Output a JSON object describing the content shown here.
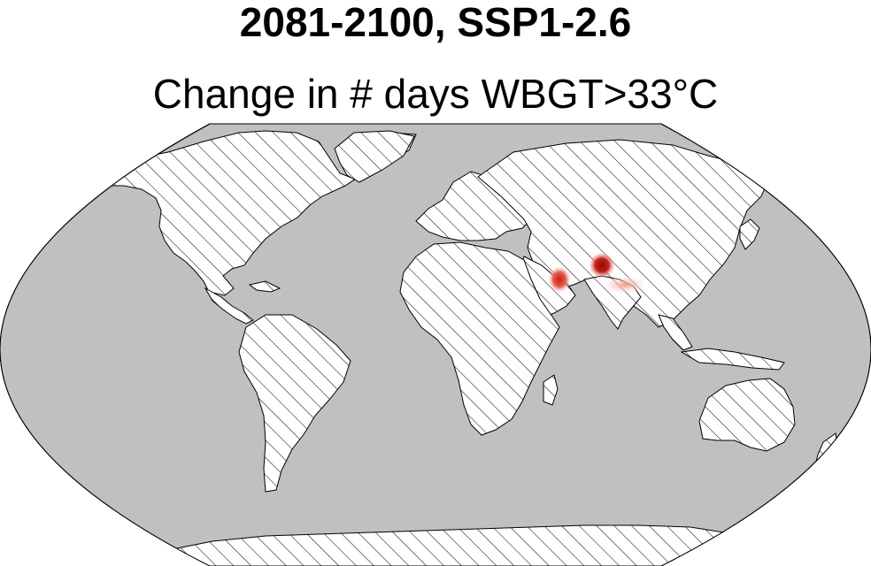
{
  "figure": {
    "title": "2081-2100, SSP1-2.6",
    "subtitle": "Change in # days WBGT>33°C"
  },
  "map": {
    "projection": "Robinson",
    "ocean_color": "#c0c0c0",
    "land_color": "#ffffff",
    "coastline_color": "#000000",
    "hatching": "diagonal hatching over land",
    "hotspots": [
      {
        "region": "Persian Gulf",
        "intensity": "moderate",
        "color": "#e0403a"
      },
      {
        "region": "Indus Valley / NW India",
        "intensity": "high",
        "color": "#b3150f"
      },
      {
        "region": "Ganges plain",
        "intensity": "low",
        "color": "#f6b9b0"
      }
    ]
  }
}
